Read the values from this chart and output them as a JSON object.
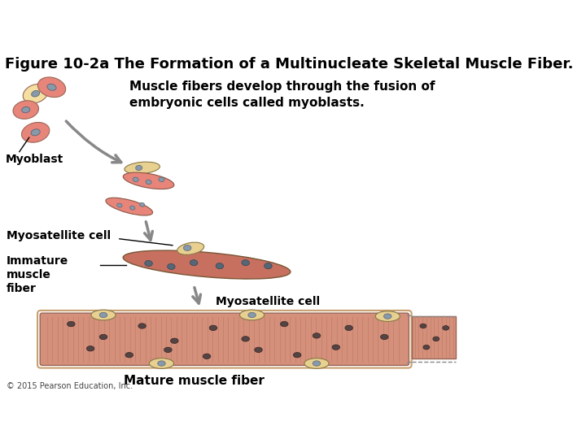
{
  "title": "Figure 10-2a The Formation of a Multinucleate Skeletal Muscle Fiber.",
  "title_fontsize": 13,
  "description_text": "Muscle fibers develop through the fusion of\nembryonic cells called myoblasts.",
  "description_fontsize": 11,
  "label_myoblast": "Myoblast",
  "label_myosatellite1": "Myosatellite cell",
  "label_immature_muscle": "Immature\nmuscle\nfiber",
  "label_myosatellite2": "Myosatellite cell",
  "label_mature_muscle": "Mature muscle fiber",
  "copyright": "© 2015 Pearson Education, Inc.",
  "bg_color": "#ffffff",
  "cell_pink": "#E8857A",
  "cell_yellow": "#F5DFA0",
  "cell_nucleus": "#8899AA",
  "muscle_red": "#C87060",
  "mature_bg": "#D4907A",
  "mature_stripe": "#C07868",
  "myosatellite_yellow": "#E8D090",
  "arrow_color": "#888888",
  "label_fontsize": 10,
  "small_label_fontsize": 8
}
